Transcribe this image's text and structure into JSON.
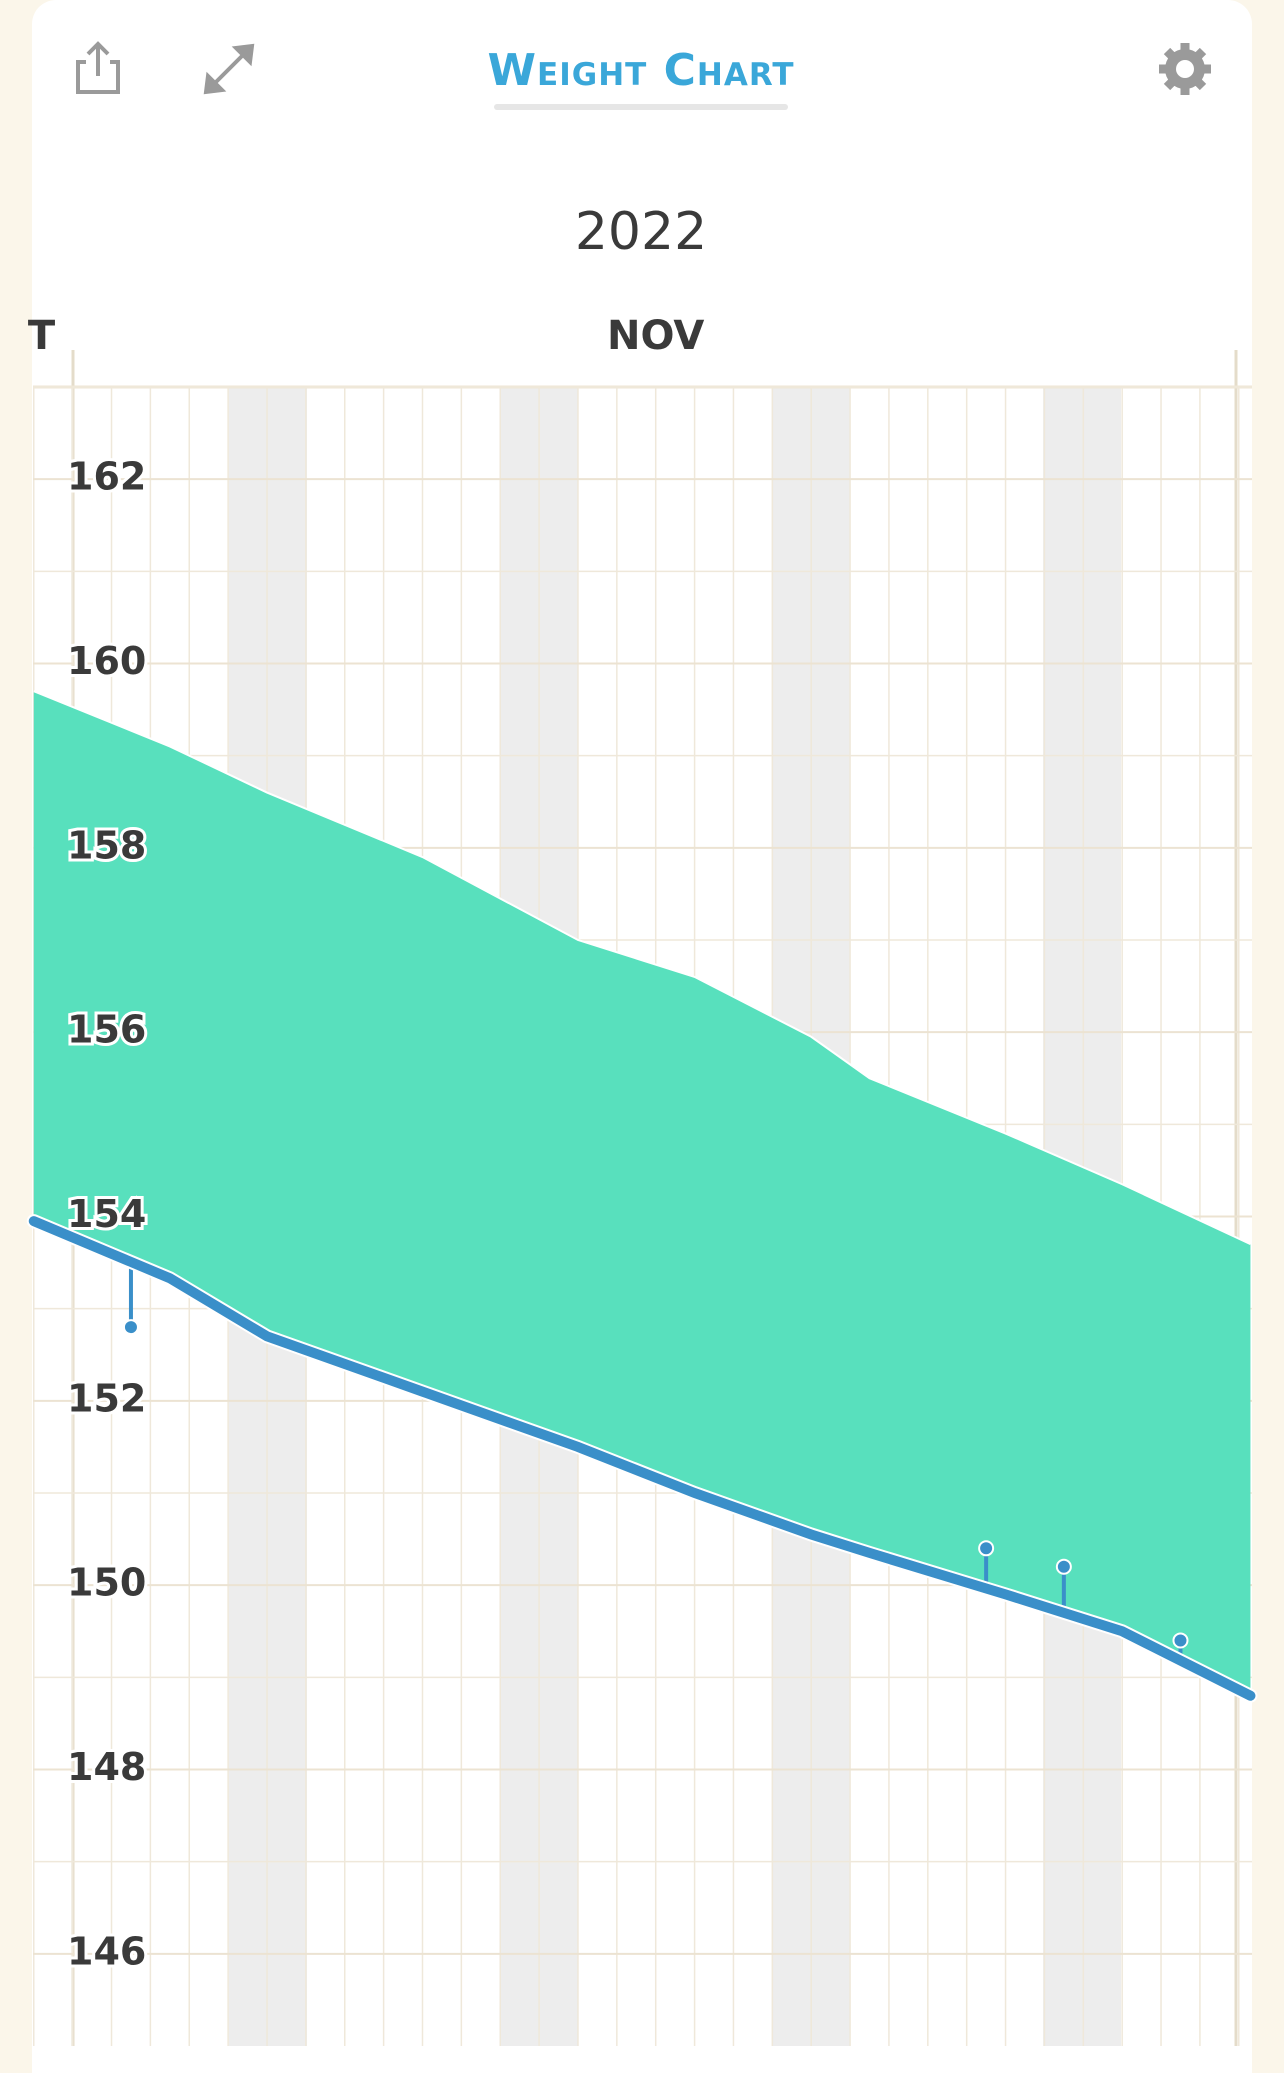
{
  "header": {
    "title": "Weight Chart"
  },
  "chart_data": {
    "type": "line",
    "title": "2022",
    "x": [
      -1,
      2.5,
      5,
      9,
      13,
      16,
      19,
      20.5,
      24,
      27,
      30.3
    ],
    "series": [
      {
        "color": "#3a8fc9",
        "values": [
          153.95,
          153.33,
          152.7,
          152.1,
          151.5,
          151.0,
          150.55,
          150.35,
          149.9,
          149.5,
          148.8
        ]
      },
      {
        "color": "#58e0bd",
        "values": [
          159.7,
          159.1,
          158.6,
          157.9,
          157.0,
          156.6,
          155.95,
          155.5,
          154.9,
          154.35,
          153.7
        ]
      },
      {
        "color": "#3a8fc9",
        "x": [
          1.5,
          23.5,
          25.5,
          28.5
        ],
        "values": [
          152.8,
          150.4,
          150.2,
          149.4
        ]
      }
    ],
    "xlim": [
      -1.02,
      30.34
    ],
    "xticks": [
      {
        "value": -0.8,
        "label": "T"
      },
      {
        "value": 15,
        "label": "NOV"
      }
    ],
    "ylim": [
      145,
      163
    ],
    "yticks": [
      146,
      148,
      150,
      152,
      154,
      156,
      158,
      160,
      162
    ],
    "grid": true
  }
}
